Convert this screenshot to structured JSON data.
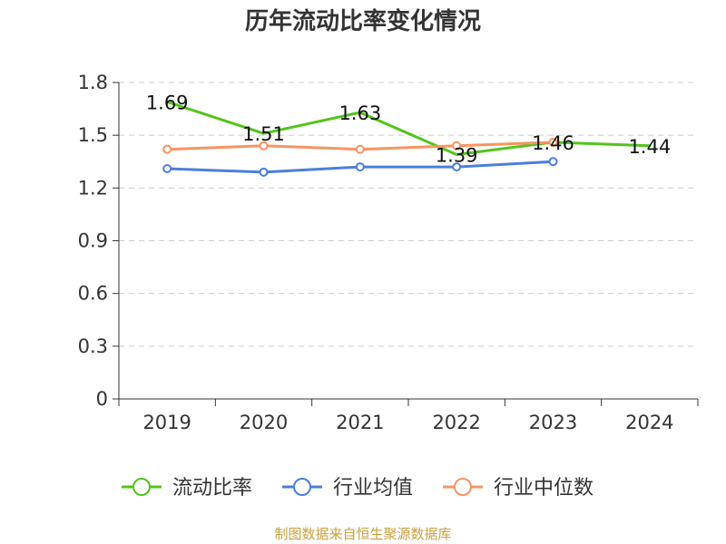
{
  "chart_data": {
    "type": "line",
    "title": "历年流动比率变化情况",
    "categories": [
      "2019",
      "2020",
      "2021",
      "2022",
      "2023",
      "2024"
    ],
    "ylim": [
      0,
      1.8
    ],
    "yticks": [
      "0",
      "0.3",
      "0.6",
      "0.9",
      "1.2",
      "1.5",
      "1.8"
    ],
    "ytick_values": [
      0,
      0.3,
      0.6,
      0.9,
      1.2,
      1.5,
      1.8
    ],
    "grid": true,
    "legend_position": "bottom",
    "series": [
      {
        "name": "流动比率",
        "color": "#52c41a",
        "values": [
          1.69,
          1.51,
          1.63,
          1.39,
          1.46,
          1.44
        ],
        "labels": [
          "1.69",
          "1.51",
          "1.63",
          "1.39",
          "1.46",
          "1.44"
        ],
        "markers": false
      },
      {
        "name": "行业均值",
        "color": "#4a7fdc",
        "values": [
          1.31,
          1.29,
          1.32,
          1.32,
          1.35,
          null
        ],
        "markers": true
      },
      {
        "name": "行业中位数",
        "color": "#f89461",
        "values": [
          1.42,
          1.44,
          1.42,
          1.44,
          1.46,
          null
        ],
        "markers": true
      }
    ],
    "source": "制图数据来自恒生聚源数据库",
    "source_color": "#c8a040"
  }
}
